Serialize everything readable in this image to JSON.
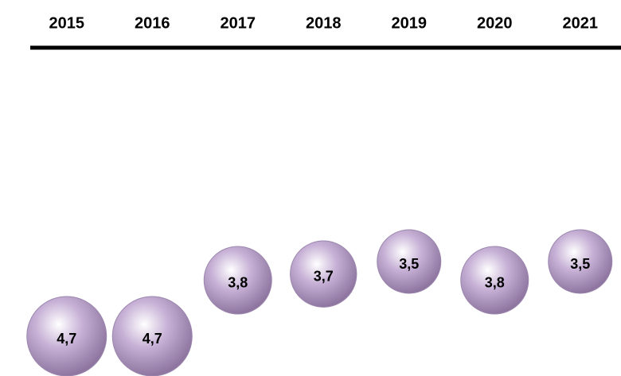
{
  "chart_data": {
    "type": "bubble",
    "categories": [
      "2015",
      "2016",
      "2017",
      "2018",
      "2019",
      "2020",
      "2021"
    ],
    "values": [
      4.7,
      4.7,
      3.8,
      3.7,
      3.5,
      3.8,
      3.5
    ],
    "value_labels": [
      "4,7",
      "4,7",
      "3,8",
      "3,7",
      "3,5",
      "3,8",
      "3,5"
    ],
    "color": "#c7b1d6"
  }
}
